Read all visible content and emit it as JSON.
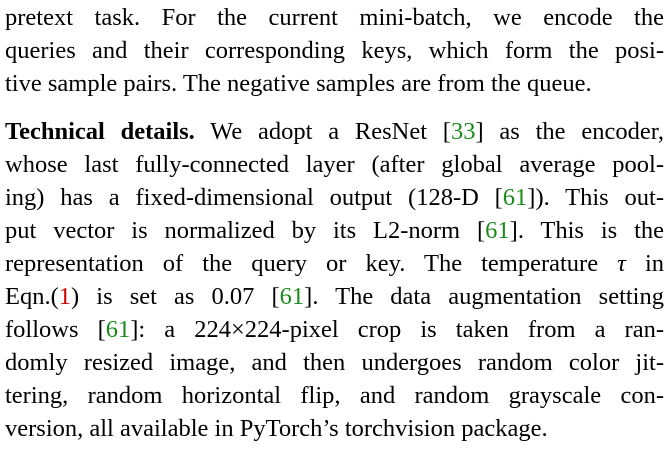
{
  "paragraph1": {
    "lines": [
      "pretext task.  For the current mini-batch, we encode the",
      "queries and their corresponding keys, which form the posi-",
      "tive sample pairs. The negative samples are from the queue."
    ]
  },
  "paragraph2": {
    "heading": "Technical details.",
    "line1_rest_a": "  We adopt a ResNet [",
    "ref_33": "33",
    "line1_rest_b": "] as the encoder,",
    "line2": "whose last fully-connected layer (after global average pool-",
    "line3_a": "ing) has a fixed-dimensional output (128-D [",
    "ref_61": "61",
    "line3_b": "]). This out-",
    "line4_a": "put vector is normalized by its L2-norm [",
    "line4_b": "].  This is the",
    "line5_a": "representation of the query or key.  The temperature ",
    "tau": "τ",
    "line5_b": " in",
    "line6_a": "Eqn.(",
    "eq_1": "1",
    "line6_b": ") is set as 0.07 [",
    "line6_c": "]. The data augmentation setting",
    "line7_a": "follows [",
    "line7_b": "]:  a 224×224-pixel crop is taken from a ran-",
    "line8": "domly resized image, and then undergoes random color jit-",
    "line9": "tering, random horizontal flip, and random grayscale con-",
    "line10": "version, all available in PyTorch’s torchvision package."
  },
  "colors": {
    "citation": "#1a8a1a",
    "equation_ref": "#d00000"
  }
}
